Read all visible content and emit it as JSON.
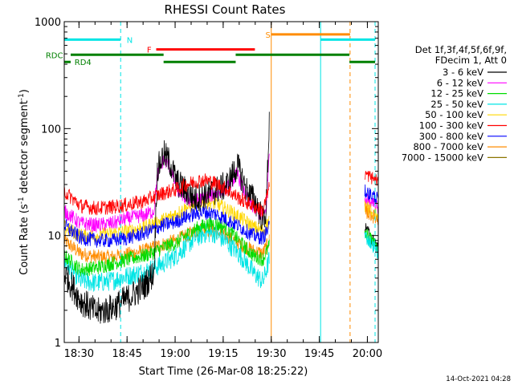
{
  "chart_data": {
    "type": "line",
    "title": "RHESSI Count Rates",
    "xlabel": "Start Time (26-Mar-08 18:25:22)",
    "ylabel_main": "Count Rate (s",
    "ylabel_sup1": "-1",
    "ylabel_mid": " detector segment",
    "ylabel_sup2": "-1",
    "ylabel_end": ")",
    "yscale": "log",
    "xlim_minutes": [
      0,
      98
    ],
    "ylim": [
      1,
      1000
    ],
    "x_ticks": [
      {
        "label": "18:30",
        "minute": 4.6
      },
      {
        "label": "18:45",
        "minute": 19.6
      },
      {
        "label": "19:00",
        "minute": 34.6
      },
      {
        "label": "19:15",
        "minute": 49.6
      },
      {
        "label": "19:30",
        "minute": 64.6
      },
      {
        "label": "19:45",
        "minute": 79.6
      },
      {
        "label": "20:00",
        "minute": 94.6
      }
    ],
    "y_ticks": [
      {
        "label": "1",
        "value": 1
      },
      {
        "label": "10",
        "value": 10
      },
      {
        "label": "100",
        "value": 100
      },
      {
        "label": "1000",
        "value": 1000
      }
    ],
    "legend": {
      "header1": "Det 1f,3f,4f,5f,6f,9f,",
      "header2": "FDecim 1, Att 0",
      "placement": "top-right-outside"
    },
    "series": [
      {
        "name": "3 - 6 keV",
        "color": "#000000",
        "base": [
          [
            0,
            4.5
          ],
          [
            5,
            2.5
          ],
          [
            10,
            1.9
          ],
          [
            15,
            2.1
          ],
          [
            20,
            2.6
          ],
          [
            25,
            3.4
          ],
          [
            28,
            4.5
          ],
          [
            29,
            40
          ],
          [
            31,
            58
          ],
          [
            33,
            48
          ],
          [
            35,
            32
          ],
          [
            38,
            26
          ],
          [
            41,
            22
          ],
          [
            44,
            24
          ],
          [
            47,
            26
          ],
          [
            51,
            30
          ],
          [
            54,
            45
          ],
          [
            57,
            26
          ],
          [
            60,
            20
          ],
          [
            62,
            14
          ],
          [
            63,
            17
          ],
          [
            64,
            120
          ]
        ]
      },
      {
        "name": "6 - 12 keV",
        "color": "#ff00ff",
        "base": [
          [
            0,
            17
          ],
          [
            5,
            13
          ],
          [
            10,
            12.5
          ],
          [
            15,
            13
          ],
          [
            20,
            14.5
          ],
          [
            25,
            15.5
          ],
          [
            28,
            17
          ],
          [
            29,
            36
          ],
          [
            31,
            52
          ],
          [
            33,
            44
          ],
          [
            35,
            28
          ],
          [
            38,
            22
          ],
          [
            41,
            21
          ],
          [
            44,
            23
          ],
          [
            47,
            24.5
          ],
          [
            51,
            28
          ],
          [
            54,
            38
          ],
          [
            57,
            22
          ],
          [
            60,
            17
          ],
          [
            62,
            15
          ],
          [
            63,
            17
          ],
          [
            64,
            60
          ]
        ]
      },
      {
        "name": "12 - 25 keV",
        "color": "#00dd00",
        "base": [
          [
            0,
            6.5
          ],
          [
            5,
            4.8
          ],
          [
            10,
            5
          ],
          [
            15,
            5.5
          ],
          [
            20,
            6
          ],
          [
            25,
            6.5
          ],
          [
            28,
            7
          ],
          [
            31,
            7.8
          ],
          [
            35,
            8.5
          ],
          [
            38,
            10
          ],
          [
            41,
            11.5
          ],
          [
            44,
            12.5
          ],
          [
            47,
            13
          ],
          [
            50,
            12
          ],
          [
            53,
            10
          ],
          [
            56,
            8
          ],
          [
            59,
            6.5
          ],
          [
            62,
            6
          ],
          [
            64,
            8
          ]
        ]
      },
      {
        "name": "25 - 50 keV",
        "color": "#00e5e5",
        "base": [
          [
            0,
            5.8
          ],
          [
            5,
            3.8
          ],
          [
            10,
            3.6
          ],
          [
            15,
            3.8
          ],
          [
            20,
            4.2
          ],
          [
            25,
            4.6
          ],
          [
            28,
            5
          ],
          [
            31,
            5.5
          ],
          [
            35,
            6.5
          ],
          [
            38,
            8
          ],
          [
            41,
            9.5
          ],
          [
            44,
            10.5
          ],
          [
            47,
            10.5
          ],
          [
            50,
            9
          ],
          [
            53,
            7.5
          ],
          [
            56,
            6
          ],
          [
            59,
            4.5
          ],
          [
            62,
            3.7
          ],
          [
            64,
            6
          ]
        ]
      },
      {
        "name": "50 - 100 keV",
        "color": "#ffd700",
        "base": [
          [
            0,
            12
          ],
          [
            5,
            10
          ],
          [
            10,
            10
          ],
          [
            15,
            10.5
          ],
          [
            20,
            11
          ],
          [
            25,
            12
          ],
          [
            28,
            13
          ],
          [
            31,
            14
          ],
          [
            35,
            16
          ],
          [
            38,
            18
          ],
          [
            41,
            20
          ],
          [
            44,
            21
          ],
          [
            47,
            20
          ],
          [
            50,
            18
          ],
          [
            53,
            16
          ],
          [
            56,
            14
          ],
          [
            59,
            12
          ],
          [
            62,
            11
          ],
          [
            64,
            14
          ]
        ]
      },
      {
        "name": "100 - 300 keV",
        "color": "#ff0000",
        "base": [
          [
            0,
            26
          ],
          [
            5,
            19
          ],
          [
            10,
            18
          ],
          [
            15,
            18.5
          ],
          [
            20,
            19.5
          ],
          [
            25,
            21
          ],
          [
            28,
            23
          ],
          [
            31,
            25
          ],
          [
            35,
            27
          ],
          [
            38,
            30
          ],
          [
            41,
            32
          ],
          [
            44,
            33
          ],
          [
            47,
            31
          ],
          [
            50,
            28
          ],
          [
            53,
            24
          ],
          [
            56,
            21
          ],
          [
            59,
            19
          ],
          [
            62,
            17
          ],
          [
            64,
            28
          ]
        ]
      },
      {
        "name": "300 - 800 keV",
        "color": "#0000ff",
        "base": [
          [
            0,
            12.5
          ],
          [
            5,
            9.5
          ],
          [
            10,
            9
          ],
          [
            15,
            9
          ],
          [
            20,
            9.5
          ],
          [
            25,
            10.5
          ],
          [
            28,
            11.5
          ],
          [
            31,
            12.5
          ],
          [
            35,
            13.5
          ],
          [
            38,
            15
          ],
          [
            41,
            16
          ],
          [
            44,
            16.5
          ],
          [
            47,
            16
          ],
          [
            50,
            14.5
          ],
          [
            53,
            13
          ],
          [
            56,
            11.5
          ],
          [
            59,
            10
          ],
          [
            62,
            9.5
          ],
          [
            64,
            12
          ]
        ]
      },
      {
        "name": "800 - 7000 keV",
        "color": "#ff8c00",
        "base": [
          [
            0,
            9
          ],
          [
            5,
            6.8
          ],
          [
            10,
            6.3
          ],
          [
            15,
            6.3
          ],
          [
            20,
            6.7
          ],
          [
            25,
            7.2
          ],
          [
            28,
            7.8
          ],
          [
            31,
            8.3
          ],
          [
            35,
            9
          ],
          [
            38,
            10
          ],
          [
            41,
            11
          ],
          [
            44,
            11.5
          ],
          [
            47,
            11
          ],
          [
            50,
            10
          ],
          [
            53,
            9
          ],
          [
            56,
            8
          ],
          [
            59,
            7.2
          ],
          [
            62,
            6.8
          ],
          [
            64,
            9
          ]
        ]
      },
      {
        "name": "7000 - 15000 keV",
        "color": "#8b7500",
        "base": [
          [
            0,
            1
          ],
          [
            64,
            1
          ]
        ]
      }
    ],
    "late_segments": {
      "x_range": [
        93.8,
        98
      ],
      "values": {
        "3 - 6 keV": [
          12,
          7.5
        ],
        "6 - 12 keV": [
          22,
          18
        ],
        "12 - 25 keV": [
          11,
          7.5
        ],
        "25 - 50 keV": [
          10,
          7
        ],
        "50 - 100 keV": [
          19,
          15
        ],
        "100 - 300 keV": [
          38,
          32
        ],
        "300 - 800 keV": [
          26,
          22
        ],
        "800 - 7000 keV": [
          17,
          14
        ]
      }
    },
    "vertical_markers": [
      {
        "minute": 0,
        "color": "#00e5e5",
        "dashed": false
      },
      {
        "minute": 17.6,
        "color": "#00e5e5",
        "dashed": true
      },
      {
        "minute": 64.6,
        "color": "#ff8c00",
        "dashed": false
      },
      {
        "minute": 80.0,
        "color": "#00e5e5",
        "dashed": false
      },
      {
        "minute": 89.2,
        "color": "#ff8c00",
        "dashed": true
      },
      {
        "minute": 97.0,
        "color": "#00e5e5",
        "dashed": true
      }
    ],
    "flag_bars": [
      {
        "label": "N",
        "color": "#00e5e5",
        "segments": [
          [
            0,
            17.6
          ],
          [
            80,
            97
          ]
        ],
        "value": 680,
        "label_minute": 19.5
      },
      {
        "label": "S",
        "color": "#ff8c00",
        "segments": [
          [
            64.6,
            89.2
          ]
        ],
        "value": 760,
        "label_minute": 62.8
      },
      {
        "label": "F",
        "color": "#ff0000",
        "segments": [
          [
            28.7,
            59.5
          ]
        ],
        "value": 550,
        "label_minute": 25.8
      },
      {
        "label": "RDC",
        "color": "#008000",
        "segments": [
          [
            2,
            31
          ],
          [
            53.5,
            89
          ]
        ],
        "value": 490,
        "label_minute": -5.8
      },
      {
        "label": "RD4",
        "color": "#008000",
        "segments": [
          [
            0,
            2
          ],
          [
            31,
            53.5
          ],
          [
            89,
            97
          ]
        ],
        "value": 420,
        "label_minute": 3.2
      }
    ],
    "timestamp": "14-Oct-2021 04:28"
  }
}
